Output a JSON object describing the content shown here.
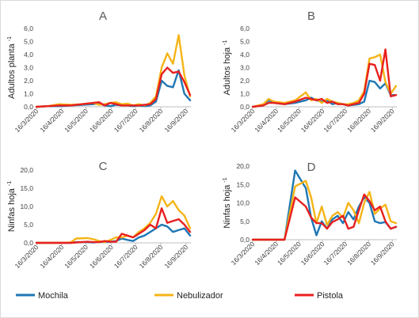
{
  "colors": {
    "mochila": "#1f77b4",
    "nebulizador": "#f5b417",
    "pistola": "#e8201e"
  },
  "legend": [
    {
      "name": "Mochila",
      "color": "#1f77b4"
    },
    {
      "name": "Nebulizador",
      "color": "#f5b417"
    },
    {
      "name": "Pistola",
      "color": "#e8201e"
    }
  ],
  "chart_data": [
    {
      "panel": "A",
      "type": "line",
      "title": "A",
      "ylabel": "Adultos planta",
      "ylabel_sup": "-1",
      "ylim": [
        0,
        6
      ],
      "yticks": [
        "0,0",
        "1,0",
        "2,0",
        "3,0",
        "4,0",
        "5,0",
        "6,0"
      ],
      "xticks": [
        "16/3/2020",
        "16/4/2020",
        "16/5/2020",
        "16/6/2020",
        "16/7/2020",
        "16/8/2020",
        "16/9/2020"
      ],
      "grid": false,
      "series": [
        {
          "name": "Mochila",
          "color": "#1f77b4",
          "x": [
            "2020-03-16",
            "2020-03-30",
            "2020-04-13",
            "2020-04-27",
            "2020-05-11",
            "2020-05-25",
            "2020-06-01",
            "2020-06-08",
            "2020-06-15",
            "2020-06-22",
            "2020-06-29",
            "2020-07-06",
            "2020-07-13",
            "2020-07-20",
            "2020-07-27",
            "2020-08-03",
            "2020-08-10",
            "2020-08-17",
            "2020-08-24",
            "2020-08-31",
            "2020-09-07",
            "2020-09-14",
            "2020-09-21"
          ],
          "y": [
            0,
            0.05,
            0.05,
            0.1,
            0.15,
            0.2,
            0.25,
            0.1,
            0.05,
            0.15,
            0.1,
            0.1,
            0.05,
            0.1,
            0.05,
            0.1,
            0.4,
            2.0,
            1.6,
            1.5,
            2.8,
            1.0,
            0.5
          ]
        },
        {
          "name": "Nebulizador",
          "color": "#f5b417",
          "x": [
            "2020-03-16",
            "2020-03-30",
            "2020-04-13",
            "2020-04-27",
            "2020-05-11",
            "2020-05-25",
            "2020-06-01",
            "2020-06-08",
            "2020-06-15",
            "2020-06-22",
            "2020-06-29",
            "2020-07-06",
            "2020-07-13",
            "2020-07-20",
            "2020-07-27",
            "2020-08-03",
            "2020-08-10",
            "2020-08-17",
            "2020-08-24",
            "2020-08-31",
            "2020-09-07",
            "2020-09-14",
            "2020-09-21"
          ],
          "y": [
            0,
            0.05,
            0.2,
            0.15,
            0.2,
            0.3,
            0.15,
            0.2,
            0.3,
            0.35,
            0.2,
            0.25,
            0.1,
            0.2,
            0.1,
            0.3,
            0.8,
            3.0,
            4.1,
            3.3,
            5.5,
            2.4,
            0.8
          ]
        },
        {
          "name": "Pistola",
          "color": "#e8201e",
          "x": [
            "2020-03-16",
            "2020-03-30",
            "2020-04-13",
            "2020-04-27",
            "2020-05-11",
            "2020-05-25",
            "2020-06-01",
            "2020-06-08",
            "2020-06-15",
            "2020-06-22",
            "2020-06-29",
            "2020-07-06",
            "2020-07-13",
            "2020-07-20",
            "2020-07-27",
            "2020-08-03",
            "2020-08-10",
            "2020-08-17",
            "2020-08-24",
            "2020-08-31",
            "2020-09-07",
            "2020-09-14",
            "2020-09-21"
          ],
          "y": [
            0,
            0.05,
            0.1,
            0.1,
            0.2,
            0.3,
            0.35,
            0.1,
            0.3,
            0.2,
            0.1,
            0.1,
            0.1,
            0.1,
            0.15,
            0.2,
            0.6,
            2.5,
            3.0,
            2.6,
            2.7,
            1.9,
            0.9
          ]
        }
      ]
    },
    {
      "panel": "B",
      "type": "line",
      "title": "B",
      "ylabel": "Adultos hoja",
      "ylabel_sup": "-1",
      "ylim": [
        0,
        6
      ],
      "yticks": [
        "0,0",
        "1,0",
        "2,0",
        "3,0",
        "4,0",
        "5,0",
        "6,0"
      ],
      "xticks": [
        "16/3/2020",
        "16/4/2020",
        "16/5/2020",
        "16/6/2020",
        "16/7/2020",
        "16/8/2020",
        "16/9/2020"
      ],
      "grid": false,
      "series": [
        {
          "name": "Mochila",
          "color": "#1f77b4",
          "x": [
            "2020-03-16",
            "2020-03-30",
            "2020-04-06",
            "2020-04-13",
            "2020-04-27",
            "2020-05-11",
            "2020-05-25",
            "2020-06-01",
            "2020-06-08",
            "2020-06-15",
            "2020-06-22",
            "2020-06-29",
            "2020-07-06",
            "2020-07-13",
            "2020-07-20",
            "2020-07-27",
            "2020-08-03",
            "2020-08-10",
            "2020-08-17",
            "2020-08-24",
            "2020-08-31",
            "2020-09-07",
            "2020-09-14",
            "2020-09-21"
          ],
          "y": [
            0,
            0.1,
            0.5,
            0.3,
            0.2,
            0.3,
            0.5,
            0.7,
            0.5,
            0.4,
            0.5,
            0.2,
            0.3,
            0.2,
            0.1,
            0.15,
            0.2,
            0.4,
            2.0,
            1.9,
            1.4,
            1.8,
            0.9,
            0.9
          ]
        },
        {
          "name": "Nebulizador",
          "color": "#f5b417",
          "x": [
            "2020-03-16",
            "2020-03-30",
            "2020-04-06",
            "2020-04-13",
            "2020-04-27",
            "2020-05-11",
            "2020-05-25",
            "2020-06-01",
            "2020-06-08",
            "2020-06-15",
            "2020-06-22",
            "2020-06-29",
            "2020-07-06",
            "2020-07-13",
            "2020-07-20",
            "2020-07-27",
            "2020-08-03",
            "2020-08-10",
            "2020-08-17",
            "2020-08-24",
            "2020-08-31",
            "2020-09-07",
            "2020-09-14",
            "2020-09-21"
          ],
          "y": [
            0,
            0.2,
            0.6,
            0.4,
            0.3,
            0.5,
            1.1,
            0.5,
            0.6,
            0.3,
            0.6,
            0.4,
            0.3,
            0.2,
            0.2,
            0.3,
            0.5,
            1.2,
            3.7,
            3.8,
            4.0,
            1.9,
            1.0,
            1.6
          ]
        },
        {
          "name": "Pistola",
          "color": "#e8201e",
          "x": [
            "2020-03-16",
            "2020-03-30",
            "2020-04-06",
            "2020-04-13",
            "2020-04-27",
            "2020-05-11",
            "2020-05-25",
            "2020-06-01",
            "2020-06-08",
            "2020-06-15",
            "2020-06-22",
            "2020-06-29",
            "2020-07-06",
            "2020-07-13",
            "2020-07-20",
            "2020-07-27",
            "2020-08-03",
            "2020-08-10",
            "2020-08-17",
            "2020-08-24",
            "2020-08-31",
            "2020-09-07",
            "2020-09-14",
            "2020-09-21"
          ],
          "y": [
            0,
            0.1,
            0.3,
            0.3,
            0.2,
            0.4,
            0.7,
            0.6,
            0.5,
            0.6,
            0.3,
            0.4,
            0.2,
            0.2,
            0.1,
            0.2,
            0.3,
            1.0,
            3.3,
            3.2,
            2.0,
            4.4,
            0.8,
            0.9
          ]
        }
      ]
    },
    {
      "panel": "C",
      "type": "line",
      "title": "C",
      "ylabel": "Ninfas hoja",
      "ylabel_sup": "-1",
      "ylim": [
        0,
        20
      ],
      "yticks": [
        "0,0",
        "5,0",
        "10,0",
        "15,0",
        "20,0"
      ],
      "xticks": [
        "16/3/2020",
        "16/4/2020",
        "16/5/2020",
        "16/6/2020",
        "16/7/2020",
        "16/8/2020",
        "16/9/2020"
      ],
      "grid": false,
      "series": [
        {
          "name": "Mochila",
          "color": "#1f77b4",
          "x": [
            "2020-03-16",
            "2020-04-13",
            "2020-04-27",
            "2020-05-04",
            "2020-05-18",
            "2020-05-25",
            "2020-06-01",
            "2020-06-08",
            "2020-06-15",
            "2020-06-22",
            "2020-06-29",
            "2020-07-06",
            "2020-07-13",
            "2020-07-20",
            "2020-07-27",
            "2020-08-03",
            "2020-08-10",
            "2020-08-17",
            "2020-08-24",
            "2020-08-31",
            "2020-09-07",
            "2020-09-14",
            "2020-09-21"
          ],
          "y": [
            0,
            0,
            0,
            0.2,
            0.2,
            0.1,
            0.3,
            0.2,
            0.3,
            0.5,
            1.2,
            0.8,
            0.5,
            1.5,
            2.0,
            3.0,
            4.0,
            5.0,
            4.5,
            3.0,
            3.5,
            4.0,
            2.0
          ]
        },
        {
          "name": "Nebulizador",
          "color": "#f5b417",
          "x": [
            "2020-03-16",
            "2020-04-13",
            "2020-04-27",
            "2020-05-04",
            "2020-05-18",
            "2020-05-25",
            "2020-06-01",
            "2020-06-08",
            "2020-06-15",
            "2020-06-22",
            "2020-06-29",
            "2020-07-06",
            "2020-07-13",
            "2020-07-20",
            "2020-07-27",
            "2020-08-03",
            "2020-08-10",
            "2020-08-17",
            "2020-08-24",
            "2020-08-31",
            "2020-09-07",
            "2020-09-14",
            "2020-09-21"
          ],
          "y": [
            0,
            0,
            0.1,
            1.2,
            1.3,
            1.0,
            0.5,
            0.2,
            0.8,
            1.5,
            1.5,
            2.0,
            1.5,
            3.0,
            4.0,
            5.5,
            8.0,
            12.8,
            10.0,
            11.5,
            9.0,
            7.5,
            4.0
          ]
        },
        {
          "name": "Pistola",
          "color": "#e8201e",
          "x": [
            "2020-03-16",
            "2020-04-13",
            "2020-04-27",
            "2020-05-04",
            "2020-05-18",
            "2020-05-25",
            "2020-06-01",
            "2020-06-08",
            "2020-06-15",
            "2020-06-22",
            "2020-06-29",
            "2020-07-06",
            "2020-07-13",
            "2020-07-20",
            "2020-07-27",
            "2020-08-03",
            "2020-08-10",
            "2020-08-17",
            "2020-08-24",
            "2020-08-31",
            "2020-09-07",
            "2020-09-14",
            "2020-09-21"
          ],
          "y": [
            0,
            0,
            0,
            0.1,
            0.3,
            0.2,
            0.2,
            0.5,
            0.3,
            0.3,
            2.5,
            2.0,
            1.5,
            2.5,
            3.5,
            5.0,
            4.0,
            9.5,
            5.5,
            6.0,
            6.5,
            5.0,
            3.0
          ]
        }
      ]
    },
    {
      "panel": "D",
      "type": "line",
      "title": "D",
      "ylabel": "Ninfas hoja",
      "ylabel_sup": "-1",
      "ylim": [
        0,
        20
      ],
      "yticks": [
        "0,0",
        "5,0",
        "10,0",
        "15,0",
        "20,0"
      ],
      "xticks": [
        "16/3/2020",
        "16/4/2020",
        "16/5/2020",
        "16/6/2020",
        "16/7/2020",
        "16/8/2020",
        "16/9/2020"
      ],
      "grid": false,
      "series": [
        {
          "name": "Mochila",
          "color": "#1f77b4",
          "x": [
            "2020-03-16",
            "2020-04-13",
            "2020-04-27",
            "2020-05-11",
            "2020-05-25",
            "2020-06-01",
            "2020-06-08",
            "2020-06-15",
            "2020-06-22",
            "2020-06-29",
            "2020-07-06",
            "2020-07-13",
            "2020-07-20",
            "2020-07-27",
            "2020-08-03",
            "2020-08-10",
            "2020-08-17",
            "2020-08-24",
            "2020-08-31",
            "2020-09-07",
            "2020-09-14",
            "2020-09-21"
          ],
          "y": [
            0,
            0,
            0,
            18.8,
            14.0,
            6.0,
            1.2,
            5.0,
            3.0,
            5.5,
            6.5,
            4.5,
            7.5,
            5.5,
            9.0,
            11.5,
            10.0,
            5.0,
            4.5,
            4.8,
            3.0,
            3.5
          ]
        },
        {
          "name": "Nebulizador",
          "color": "#f5b417",
          "x": [
            "2020-03-16",
            "2020-04-13",
            "2020-04-27",
            "2020-05-11",
            "2020-05-25",
            "2020-06-01",
            "2020-06-08",
            "2020-06-15",
            "2020-06-22",
            "2020-06-29",
            "2020-07-06",
            "2020-07-13",
            "2020-07-20",
            "2020-07-27",
            "2020-08-03",
            "2020-08-10",
            "2020-08-17",
            "2020-08-24",
            "2020-08-31",
            "2020-09-07",
            "2020-09-14",
            "2020-09-21"
          ],
          "y": [
            0,
            0,
            0,
            14.5,
            16.0,
            11.5,
            4.5,
            9.0,
            4.0,
            6.5,
            7.5,
            6.0,
            10.0,
            8.0,
            4.5,
            10.0,
            13.0,
            7.0,
            8.5,
            9.5,
            5.0,
            4.5
          ]
        },
        {
          "name": "Pistola",
          "color": "#e8201e",
          "x": [
            "2020-03-16",
            "2020-04-13",
            "2020-04-27",
            "2020-05-11",
            "2020-05-25",
            "2020-06-01",
            "2020-06-08",
            "2020-06-15",
            "2020-06-22",
            "2020-06-29",
            "2020-07-06",
            "2020-07-13",
            "2020-07-20",
            "2020-07-27",
            "2020-08-03",
            "2020-08-10",
            "2020-08-17",
            "2020-08-24",
            "2020-08-31",
            "2020-09-07",
            "2020-09-14",
            "2020-09-21"
          ],
          "y": [
            0,
            0,
            0,
            11.5,
            9.0,
            6.0,
            4.5,
            4.5,
            3.0,
            4.8,
            5.5,
            6.5,
            3.0,
            3.5,
            8.0,
            12.3,
            10.5,
            8.0,
            9.0,
            5.0,
            3.0,
            3.5
          ]
        }
      ]
    }
  ]
}
